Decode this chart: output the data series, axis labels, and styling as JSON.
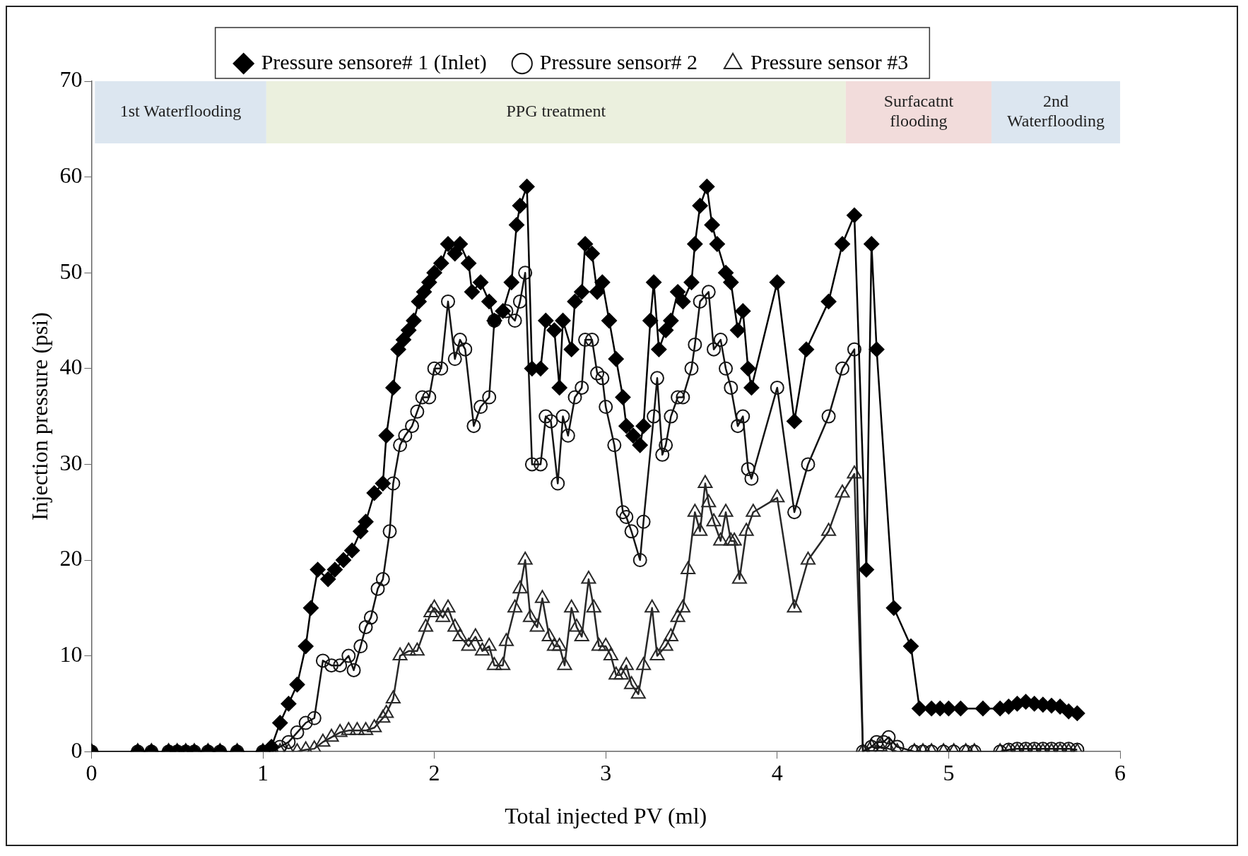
{
  "chart_data": {
    "type": "line",
    "xlabel": "Total injected PV (ml)",
    "ylabel": "Injection pressure (psi)",
    "xlim": [
      0,
      6
    ],
    "xticks": [
      0,
      1,
      2,
      3,
      4,
      5,
      6
    ],
    "ylim": [
      0,
      70
    ],
    "yticks": [
      0,
      10,
      20,
      30,
      40,
      50,
      60,
      70
    ],
    "grid": false,
    "legend": "top",
    "line_style": "solid",
    "bands": [
      {
        "axis": "x",
        "from": 0.02,
        "to": 1.02,
        "label": "1st Waterflooding",
        "color": "#dce6f0"
      },
      {
        "axis": "x",
        "from": 1.02,
        "to": 4.4,
        "label": "PPG treatment",
        "color": "#ebf0de"
      },
      {
        "axis": "x",
        "from": 4.4,
        "to": 5.25,
        "label": "Surfacatnt flooding",
        "color": "#f2dcdb"
      },
      {
        "axis": "x",
        "from": 5.25,
        "to": 6,
        "label": "2nd Waterflooding",
        "color": "#dce6f0"
      }
    ],
    "series": [
      {
        "name": "Pressure sensore# 1 (Inlet)",
        "color": "#000000",
        "marker": "diamond",
        "x": [
          0,
          0.27,
          0.35,
          0.45,
          0.5,
          0.55,
          0.6,
          0.68,
          0.75,
          0.85,
          1.0,
          1.05,
          1.1,
          1.15,
          1.2,
          1.25,
          1.28,
          1.32,
          1.38,
          1.42,
          1.47,
          1.52,
          1.57,
          1.6,
          1.65,
          1.7,
          1.72,
          1.76,
          1.79,
          1.82,
          1.85,
          1.88,
          1.91,
          1.94,
          1.97,
          2.0,
          2.04,
          2.08,
          2.12,
          2.15,
          2.2,
          2.22,
          2.27,
          2.32,
          2.35,
          2.4,
          2.45,
          2.48,
          2.5,
          2.54,
          2.57,
          2.62,
          2.65,
          2.7,
          2.73,
          2.75,
          2.8,
          2.82,
          2.86,
          2.88,
          2.92,
          2.95,
          2.98,
          3.02,
          3.06,
          3.1,
          3.12,
          3.16,
          3.2,
          3.22,
          3.26,
          3.28,
          3.31,
          3.35,
          3.38,
          3.42,
          3.45,
          3.5,
          3.52,
          3.55,
          3.59,
          3.62,
          3.65,
          3.7,
          3.73,
          3.77,
          3.8,
          3.83,
          3.85,
          4.0,
          4.1,
          4.17,
          4.3,
          4.38,
          4.45,
          4.52,
          4.55,
          4.58,
          4.68,
          4.78,
          4.83,
          4.9,
          4.95,
          5.0,
          5.07,
          5.2,
          5.3,
          5.35,
          5.4,
          5.45,
          5.5,
          5.55,
          5.6,
          5.65,
          5.7,
          5.75
        ],
        "values": [
          0,
          0,
          0,
          0,
          0,
          0,
          0,
          0,
          0,
          0,
          0,
          0.5,
          3,
          5,
          7,
          11,
          15,
          19,
          18,
          19,
          20,
          21,
          23,
          24,
          27,
          28,
          33,
          38,
          42,
          43,
          44,
          45,
          47,
          48,
          49,
          50,
          51,
          53,
          52,
          53,
          51,
          48,
          49,
          47,
          45,
          46,
          49,
          55,
          57,
          59,
          40,
          40,
          45,
          44,
          38,
          45,
          42,
          47,
          48,
          53,
          52,
          48,
          49,
          45,
          41,
          37,
          34,
          33,
          32,
          34,
          45,
          49,
          42,
          44,
          45,
          48,
          47,
          49,
          53,
          57,
          59,
          55,
          53,
          50,
          49,
          44,
          46,
          40,
          38,
          49,
          34.5,
          42,
          47,
          53,
          56,
          19,
          53,
          42,
          15,
          11,
          4.5,
          4.5,
          4.5,
          4.5,
          4.5,
          4.5,
          4.5,
          4.7,
          5,
          5.2,
          5,
          4.9,
          4.8,
          4.7,
          4.2,
          4
        ]
      },
      {
        "name": "Pressure sensor# 2",
        "color": "#141414",
        "marker": "circle",
        "x": [
          0,
          0.27,
          0.35,
          0.45,
          0.5,
          0.55,
          0.6,
          0.68,
          0.75,
          0.85,
          1.0,
          1.05,
          1.1,
          1.15,
          1.2,
          1.25,
          1.3,
          1.35,
          1.4,
          1.45,
          1.5,
          1.53,
          1.57,
          1.6,
          1.63,
          1.67,
          1.7,
          1.74,
          1.76,
          1.8,
          1.83,
          1.87,
          1.9,
          1.93,
          1.97,
          2.0,
          2.04,
          2.08,
          2.12,
          2.15,
          2.18,
          2.23,
          2.27,
          2.32,
          2.35,
          2.42,
          2.47,
          2.5,
          2.53,
          2.57,
          2.62,
          2.65,
          2.68,
          2.72,
          2.75,
          2.78,
          2.82,
          2.86,
          2.88,
          2.92,
          2.95,
          2.98,
          3.0,
          3.05,
          3.1,
          3.12,
          3.15,
          3.2,
          3.22,
          3.28,
          3.3,
          3.33,
          3.35,
          3.38,
          3.42,
          3.45,
          3.5,
          3.52,
          3.55,
          3.6,
          3.63,
          3.67,
          3.7,
          3.73,
          3.77,
          3.8,
          3.83,
          3.85,
          4.0,
          4.1,
          4.18,
          4.3,
          4.38,
          4.45,
          4.5,
          4.55,
          4.58,
          4.62,
          4.65,
          4.7,
          4.8,
          4.85,
          4.9,
          4.97,
          5.03,
          5.1,
          5.15,
          5.3,
          5.35,
          5.4,
          5.45,
          5.5,
          5.55,
          5.6,
          5.65,
          5.7,
          5.75
        ],
        "values": [
          0,
          0,
          0,
          0,
          0,
          0,
          0,
          0,
          0,
          0,
          0,
          0,
          0.5,
          1,
          2,
          3,
          3.5,
          9.5,
          9,
          9,
          10,
          8.5,
          11,
          13,
          14,
          17,
          18,
          23,
          28,
          32,
          33,
          34,
          35.5,
          37,
          37,
          40,
          40,
          47,
          41,
          43,
          42,
          34,
          36,
          37,
          45,
          46,
          45,
          47,
          50,
          30,
          30,
          35,
          34.5,
          28,
          35,
          33,
          37,
          38,
          43,
          43,
          39.5,
          39,
          36,
          32,
          25,
          24.5,
          23,
          20,
          24,
          35,
          39,
          31,
          32,
          35,
          37,
          37,
          40,
          42.5,
          47,
          48,
          42,
          43,
          40,
          38,
          34,
          35,
          29.5,
          28.5,
          38,
          25,
          30,
          35,
          40,
          42,
          0,
          0.5,
          1,
          1,
          1.5,
          0.5,
          0,
          0,
          0,
          0,
          0,
          0,
          0,
          0,
          0.2,
          0.3,
          0.3,
          0.3,
          0.3,
          0.3,
          0.3,
          0.3,
          0.2
        ]
      },
      {
        "name": "Pressure sensor #3",
        "color": "#282828",
        "marker": "triangle",
        "x": [
          0,
          0.27,
          0.35,
          0.45,
          0.5,
          0.55,
          0.6,
          0.68,
          0.75,
          0.85,
          1.0,
          1.05,
          1.1,
          1.15,
          1.2,
          1.25,
          1.3,
          1.35,
          1.4,
          1.45,
          1.5,
          1.55,
          1.6,
          1.65,
          1.7,
          1.72,
          1.76,
          1.8,
          1.85,
          1.9,
          1.95,
          1.98,
          2.0,
          2.05,
          2.08,
          2.12,
          2.15,
          2.2,
          2.24,
          2.28,
          2.32,
          2.35,
          2.4,
          2.42,
          2.47,
          2.5,
          2.53,
          2.56,
          2.6,
          2.63,
          2.67,
          2.7,
          2.73,
          2.76,
          2.8,
          2.83,
          2.86,
          2.9,
          2.93,
          2.96,
          3.0,
          3.03,
          3.06,
          3.09,
          3.12,
          3.15,
          3.19,
          3.22,
          3.27,
          3.3,
          3.35,
          3.38,
          3.42,
          3.45,
          3.48,
          3.52,
          3.55,
          3.58,
          3.6,
          3.63,
          3.67,
          3.7,
          3.73,
          3.75,
          3.78,
          3.82,
          3.86,
          4.0,
          4.1,
          4.18,
          4.3,
          4.38,
          4.45,
          4.5,
          4.55,
          4.6,
          4.65,
          4.7,
          4.8,
          4.85,
          4.9,
          4.97,
          5.03,
          5.1,
          5.15,
          5.3,
          5.35,
          5.4,
          5.45,
          5.5,
          5.55,
          5.6,
          5.65,
          5.7,
          5.75
        ],
        "values": [
          0,
          0,
          0,
          0,
          0,
          0,
          0,
          0,
          0,
          0,
          0,
          0,
          0,
          0,
          0,
          0.2,
          0.3,
          1,
          1.5,
          2,
          2.2,
          2.2,
          2.2,
          2.5,
          3.5,
          4,
          5.5,
          10,
          10.5,
          10.5,
          13,
          14.5,
          15,
          14,
          15,
          13,
          12,
          11,
          12,
          10.5,
          11,
          9,
          9,
          11.5,
          15,
          17,
          20,
          14,
          13,
          16,
          12,
          11,
          11,
          9,
          15,
          13,
          12,
          18,
          15,
          11,
          11,
          10,
          8,
          8,
          9,
          7,
          6,
          9,
          15,
          10,
          11,
          12,
          14,
          15,
          19,
          25,
          23,
          28,
          26,
          24,
          22,
          25,
          22,
          22,
          18,
          23,
          25,
          26.5,
          15,
          20,
          23,
          27,
          29,
          0,
          0.5,
          0.5,
          0.3,
          0,
          0,
          0,
          0,
          0,
          0,
          0,
          0,
          0,
          0,
          0,
          0,
          0,
          0,
          0,
          0,
          0,
          0
        ]
      }
    ]
  }
}
